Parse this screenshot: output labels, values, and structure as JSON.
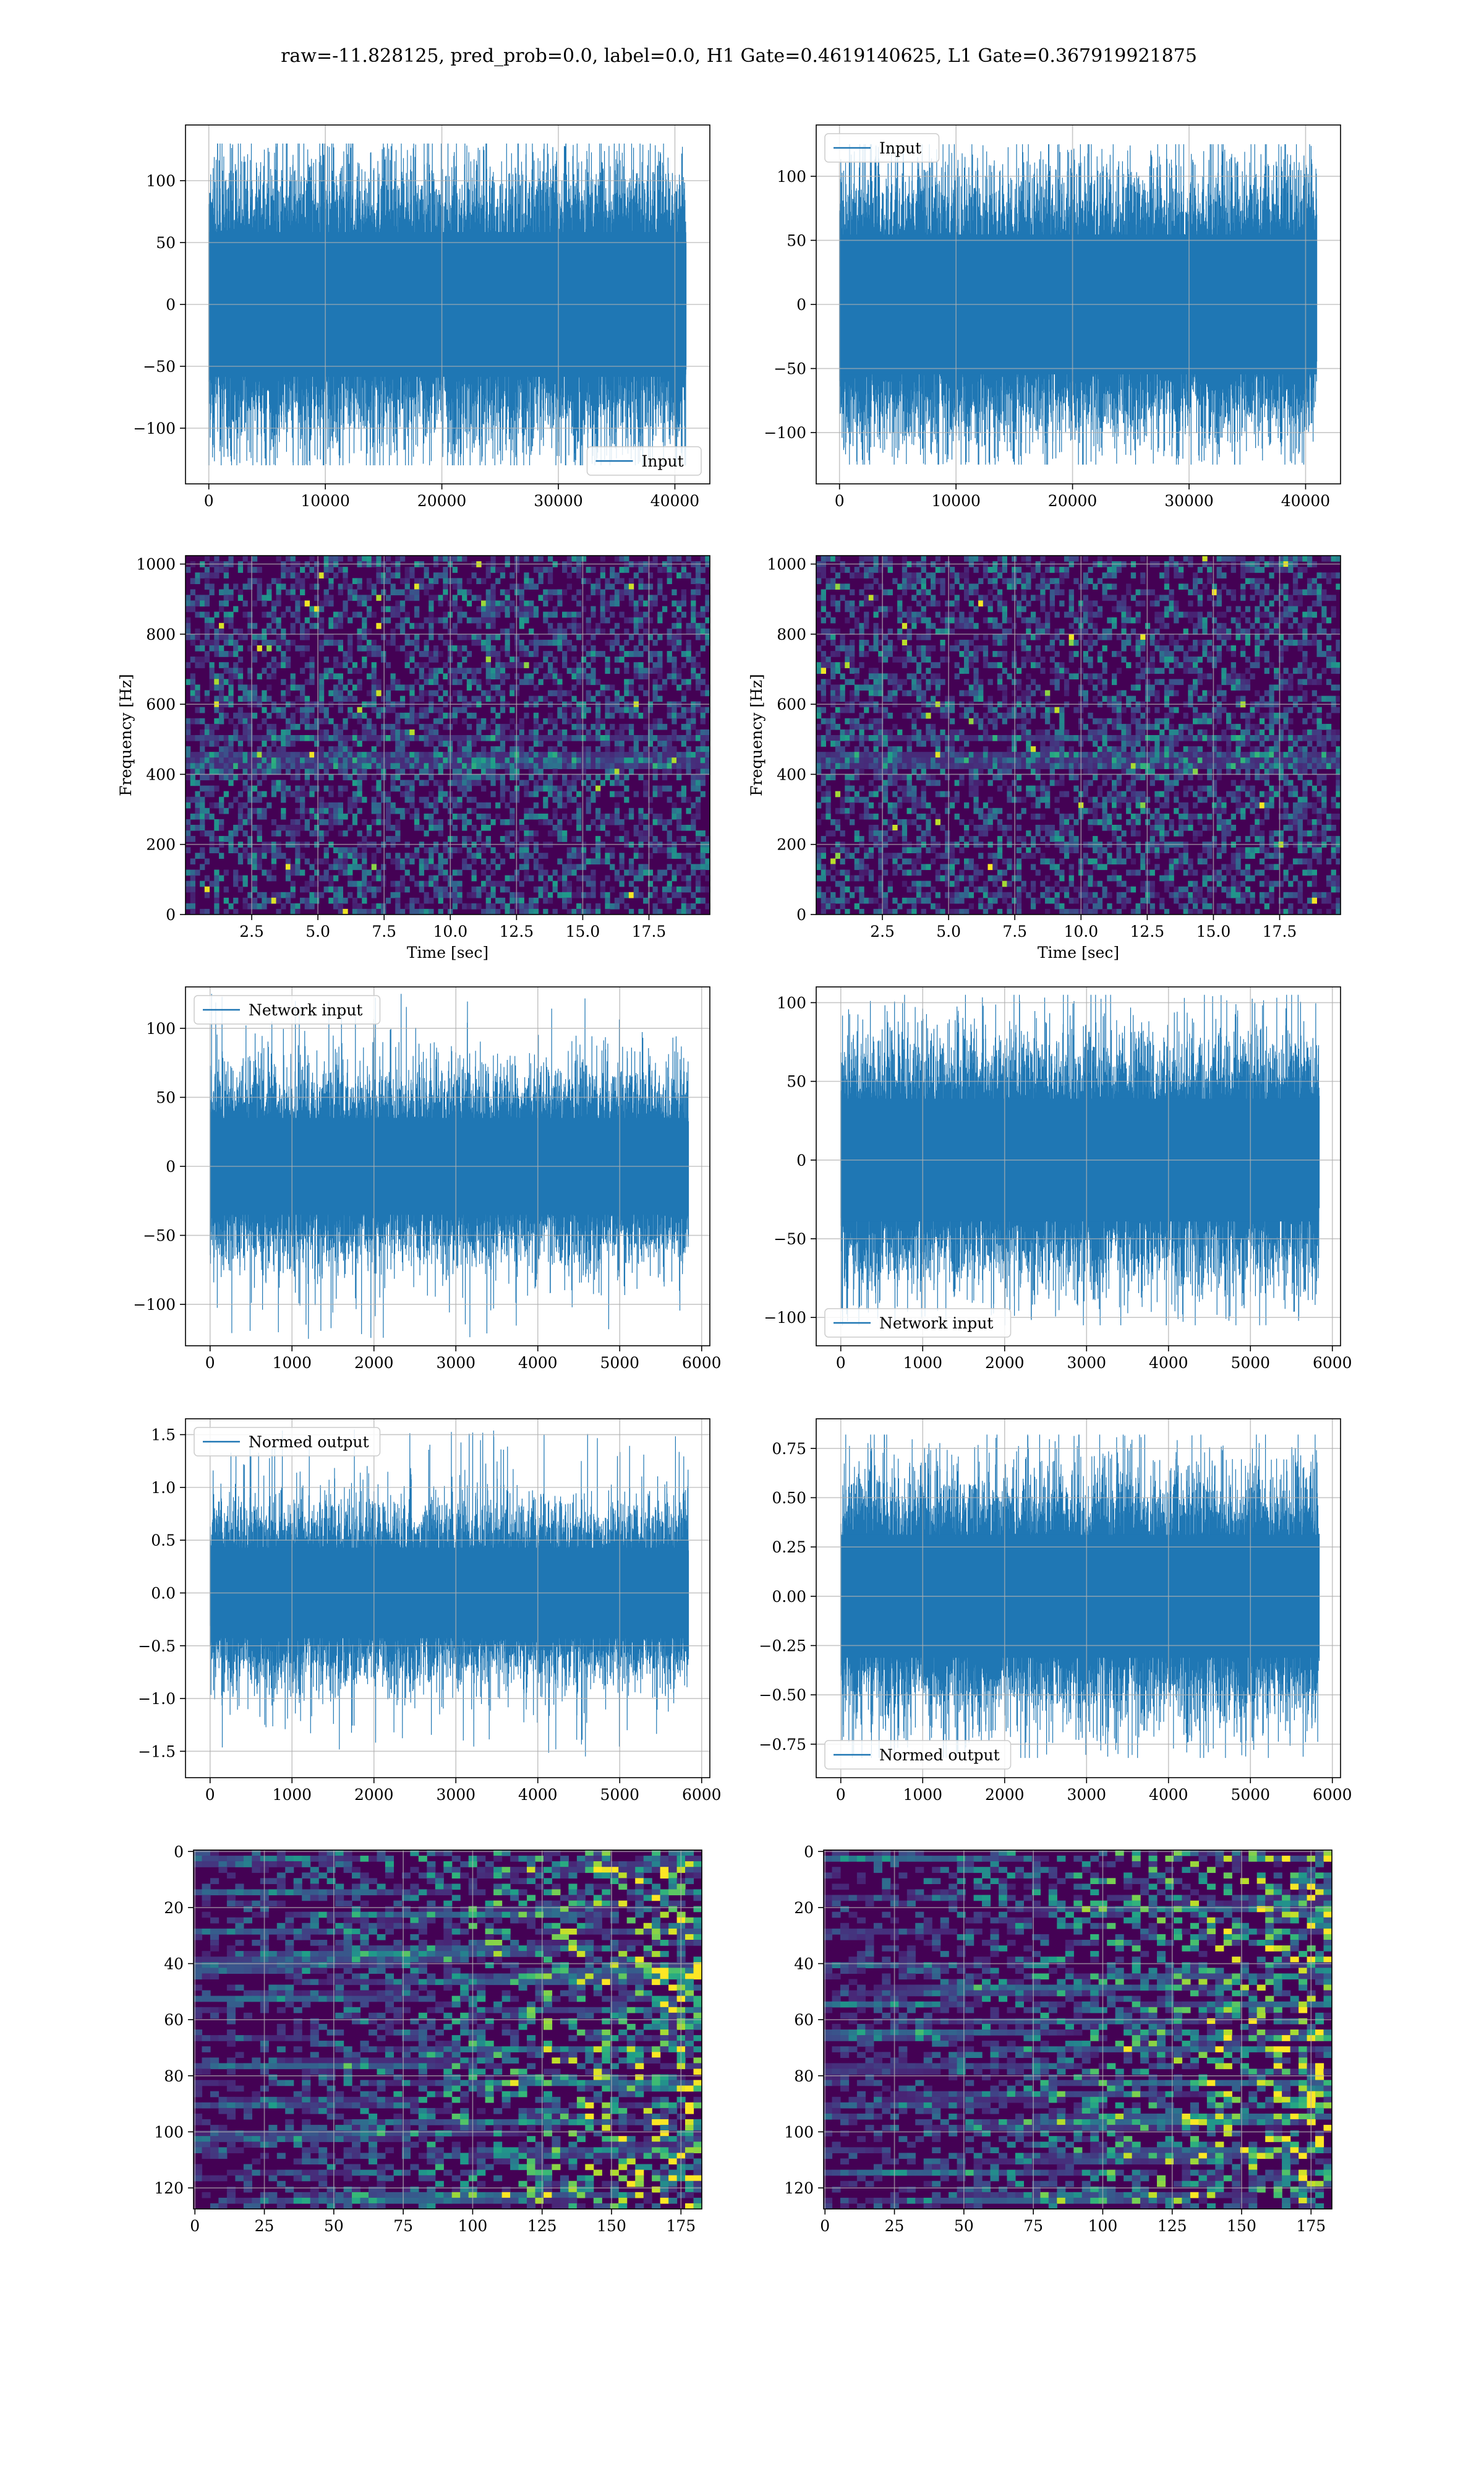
{
  "figure": {
    "suptitle": "raw=-11.828125, pred_prob=0.0, label=0.0, H1 Gate=0.4619140625, L1 Gate=0.367919921875"
  },
  "colors": {
    "line": "#1f77b4",
    "viridis_low": "#440154",
    "viridis_mid": "#21918c",
    "viridis_high": "#fde725"
  },
  "chart_data": [
    {
      "id": "r1c1",
      "type": "line",
      "series": [
        {
          "name": "Input",
          "n_points": 40960,
          "envelope": 75,
          "peak": 130
        }
      ],
      "xlim": [
        -2000,
        43000
      ],
      "ylim": [
        -145,
        145
      ],
      "xticks": [
        0,
        10000,
        20000,
        30000,
        40000
      ],
      "xtick_labels": [
        "0",
        "10000",
        "20000",
        "30000",
        "40000"
      ],
      "yticks": [
        -100,
        -50,
        0,
        50,
        100
      ],
      "ytick_labels": [
        "−100",
        "−50",
        "0",
        "50",
        "100"
      ],
      "legend": "lower right",
      "grid": true,
      "xlabel": "",
      "ylabel": ""
    },
    {
      "id": "r1c2",
      "type": "line",
      "series": [
        {
          "name": "Input",
          "n_points": 40960,
          "envelope": 70,
          "peak": 125
        }
      ],
      "xlim": [
        -2000,
        43000
      ],
      "ylim": [
        -140,
        140
      ],
      "xticks": [
        0,
        10000,
        20000,
        30000,
        40000
      ],
      "xtick_labels": [
        "0",
        "10000",
        "20000",
        "30000",
        "40000"
      ],
      "yticks": [
        -100,
        -50,
        0,
        50,
        100
      ],
      "ytick_labels": [
        "−100",
        "−50",
        "0",
        "50",
        "100"
      ],
      "legend": "upper left",
      "grid": true,
      "xlabel": "",
      "ylabel": ""
    },
    {
      "id": "r2c1",
      "type": "heatmap",
      "colormap": "viridis",
      "xlim": [
        0,
        19.8
      ],
      "ylim": [
        0,
        1024
      ],
      "xticks": [
        2.5,
        5.0,
        7.5,
        10.0,
        12.5,
        15.0,
        17.5
      ],
      "xtick_labels": [
        "2.5",
        "5.0",
        "7.5",
        "10.0",
        "12.5",
        "15.0",
        "17.5"
      ],
      "yticks": [
        0,
        200,
        400,
        600,
        800,
        1000
      ],
      "ytick_labels": [
        "0",
        "200",
        "400",
        "600",
        "800",
        "1000"
      ],
      "xlabel": "Time [sec]",
      "ylabel": "Frequency [Hz]",
      "grid": true
    },
    {
      "id": "r2c2",
      "type": "heatmap",
      "colormap": "viridis",
      "xlim": [
        0,
        19.8
      ],
      "ylim": [
        0,
        1024
      ],
      "xticks": [
        2.5,
        5.0,
        7.5,
        10.0,
        12.5,
        15.0,
        17.5
      ],
      "xtick_labels": [
        "2.5",
        "5.0",
        "7.5",
        "10.0",
        "12.5",
        "15.0",
        "17.5"
      ],
      "yticks": [
        0,
        200,
        400,
        600,
        800,
        1000
      ],
      "ytick_labels": [
        "0",
        "200",
        "400",
        "600",
        "800",
        "1000"
      ],
      "xlabel": "Time [sec]",
      "ylabel": "Frequency [Hz]",
      "grid": true
    },
    {
      "id": "r3c1",
      "type": "line",
      "series": [
        {
          "name": "Network input",
          "n_points": 5840,
          "envelope": 45,
          "peak": 125
        }
      ],
      "xlim": [
        -300,
        6100
      ],
      "ylim": [
        -130,
        130
      ],
      "xticks": [
        0,
        1000,
        2000,
        3000,
        4000,
        5000,
        6000
      ],
      "xtick_labels": [
        "0",
        "1000",
        "2000",
        "3000",
        "4000",
        "5000",
        "6000"
      ],
      "yticks": [
        -100,
        -50,
        0,
        50,
        100
      ],
      "ytick_labels": [
        "−100",
        "−50",
        "0",
        "50",
        "100"
      ],
      "legend": "upper left",
      "grid": true,
      "xlabel": "",
      "ylabel": ""
    },
    {
      "id": "r3c2",
      "type": "line",
      "series": [
        {
          "name": "Network input",
          "n_points": 5840,
          "envelope": 50,
          "peak": 105
        }
      ],
      "xlim": [
        -300,
        6100
      ],
      "ylim": [
        -118,
        110
      ],
      "xticks": [
        0,
        1000,
        2000,
        3000,
        4000,
        5000,
        6000
      ],
      "xtick_labels": [
        "0",
        "1000",
        "2000",
        "3000",
        "4000",
        "5000",
        "6000"
      ],
      "yticks": [
        -100,
        -50,
        0,
        50,
        100
      ],
      "ytick_labels": [
        "−100",
        "−50",
        "0",
        "50",
        "100"
      ],
      "legend": "lower left",
      "grid": true,
      "xlabel": "",
      "ylabel": ""
    },
    {
      "id": "r4c1",
      "type": "line",
      "series": [
        {
          "name": "Normed output",
          "n_points": 5840,
          "envelope": 0.55,
          "peak": 1.55
        }
      ],
      "xlim": [
        -300,
        6100
      ],
      "ylim": [
        -1.75,
        1.65
      ],
      "xticks": [
        0,
        1000,
        2000,
        3000,
        4000,
        5000,
        6000
      ],
      "xtick_labels": [
        "0",
        "1000",
        "2000",
        "3000",
        "4000",
        "5000",
        "6000"
      ],
      "yticks": [
        -1.5,
        -1.0,
        -0.5,
        0.0,
        0.5,
        1.0,
        1.5
      ],
      "ytick_labels": [
        "−1.5",
        "−1.0",
        "−0.5",
        "0.0",
        "0.5",
        "1.0",
        "1.5"
      ],
      "legend": "upper left",
      "grid": true,
      "xlabel": "",
      "ylabel": ""
    },
    {
      "id": "r4c2",
      "type": "line",
      "series": [
        {
          "name": "Normed output",
          "n_points": 5840,
          "envelope": 0.4,
          "peak": 0.82
        }
      ],
      "xlim": [
        -300,
        6100
      ],
      "ylim": [
        -0.92,
        0.9
      ],
      "xticks": [
        0,
        1000,
        2000,
        3000,
        4000,
        5000,
        6000
      ],
      "xtick_labels": [
        "0",
        "1000",
        "2000",
        "3000",
        "4000",
        "5000",
        "6000"
      ],
      "yticks": [
        -0.75,
        -0.5,
        -0.25,
        0.0,
        0.25,
        0.5,
        0.75
      ],
      "ytick_labels": [
        "−0.75",
        "−0.50",
        "−0.25",
        "0.00",
        "0.25",
        "0.50",
        "0.75"
      ],
      "legend": "lower left",
      "grid": true,
      "xlabel": "",
      "ylabel": ""
    },
    {
      "id": "r5c1",
      "type": "heatmap",
      "colormap": "viridis",
      "y_inverted": true,
      "xlim": [
        -0.5,
        182.5
      ],
      "ylim": [
        -0.5,
        127.5
      ],
      "cols": 183,
      "rows": 128,
      "xticks": [
        0,
        25,
        50,
        75,
        100,
        125,
        150,
        175
      ],
      "xtick_labels": [
        "0",
        "25",
        "50",
        "75",
        "100",
        "125",
        "150",
        "175"
      ],
      "yticks": [
        0,
        20,
        40,
        60,
        80,
        100,
        120
      ],
      "ytick_labels": [
        "0",
        "20",
        "40",
        "60",
        "80",
        "100",
        "120"
      ],
      "grid": true,
      "xlabel": "",
      "ylabel": ""
    },
    {
      "id": "r5c2",
      "type": "heatmap",
      "colormap": "viridis",
      "y_inverted": true,
      "xlim": [
        -0.5,
        182.5
      ],
      "ylim": [
        -0.5,
        127.5
      ],
      "cols": 183,
      "rows": 128,
      "xticks": [
        0,
        25,
        50,
        75,
        100,
        125,
        150,
        175
      ],
      "xtick_labels": [
        "0",
        "25",
        "50",
        "75",
        "100",
        "125",
        "150",
        "175"
      ],
      "yticks": [
        0,
        20,
        40,
        60,
        80,
        100,
        120
      ],
      "ytick_labels": [
        "0",
        "20",
        "40",
        "60",
        "80",
        "100",
        "120"
      ],
      "grid": true,
      "xlabel": "",
      "ylabel": ""
    }
  ]
}
